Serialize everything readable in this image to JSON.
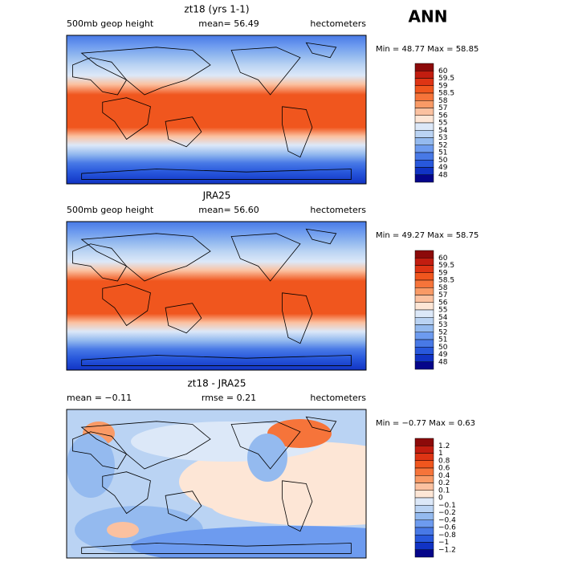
{
  "title": "ANN",
  "panels": [
    {
      "title": "zt18 (yrs 1-1)",
      "left": "500mb geop height",
      "center": "mean=  56.49",
      "right": "hectometers",
      "minmax": "Min =  48.77 Max =  58.85",
      "colorbar": {
        "labels": [
          "60",
          "59.5",
          "59",
          "58.5",
          "58",
          "57",
          "56",
          "55",
          "54",
          "53",
          "52",
          "51",
          "50",
          "49",
          "48"
        ],
        "colors": [
          "#8c0a0a",
          "#c21d10",
          "#de3414",
          "#f0561e",
          "#f6743a",
          "#f99a66",
          "#fbc1a0",
          "#fde6d6",
          "#dce8f8",
          "#bad3f3",
          "#94baef",
          "#6d9bef",
          "#4879e6",
          "#2858dc",
          "#1133c4",
          "#05058a"
        ]
      }
    },
    {
      "title": "JRA25",
      "left": "500mb geop height",
      "center": "mean=  56.60",
      "right": "hectometers",
      "minmax": "Min =  49.27 Max =  58.75",
      "colorbar": {
        "labels": [
          "60",
          "59.5",
          "59",
          "58.5",
          "58",
          "57",
          "56",
          "55",
          "54",
          "53",
          "52",
          "51",
          "50",
          "49",
          "48"
        ],
        "colors": [
          "#8c0a0a",
          "#c21d10",
          "#de3414",
          "#f0561e",
          "#f6743a",
          "#f99a66",
          "#fbc1a0",
          "#fde6d6",
          "#dce8f8",
          "#bad3f3",
          "#94baef",
          "#6d9bef",
          "#4879e6",
          "#2858dc",
          "#1133c4",
          "#05058a"
        ]
      }
    },
    {
      "title": "zt18 - JRA25",
      "left": "mean =  −0.11",
      "center": "rmse =   0.21",
      "right": "hectometers",
      "minmax": "Min = −0.77 Max =   0.63",
      "colorbar": {
        "labels": [
          "1.2",
          "1",
          "0.8",
          "0.6",
          "0.4",
          "0.2",
          "0.1",
          "0",
          "−0.1",
          "−0.2",
          "−0.4",
          "−0.6",
          "−0.8",
          "−1",
          "−1.2"
        ],
        "colors": [
          "#8c0a0a",
          "#c21d10",
          "#de3414",
          "#f0561e",
          "#f6743a",
          "#f99a66",
          "#fbc1a0",
          "#fde6d6",
          "#dce8f8",
          "#bad3f3",
          "#94baef",
          "#6d9bef",
          "#4879e6",
          "#2858dc",
          "#1133c4",
          "#05058a"
        ]
      }
    }
  ]
}
